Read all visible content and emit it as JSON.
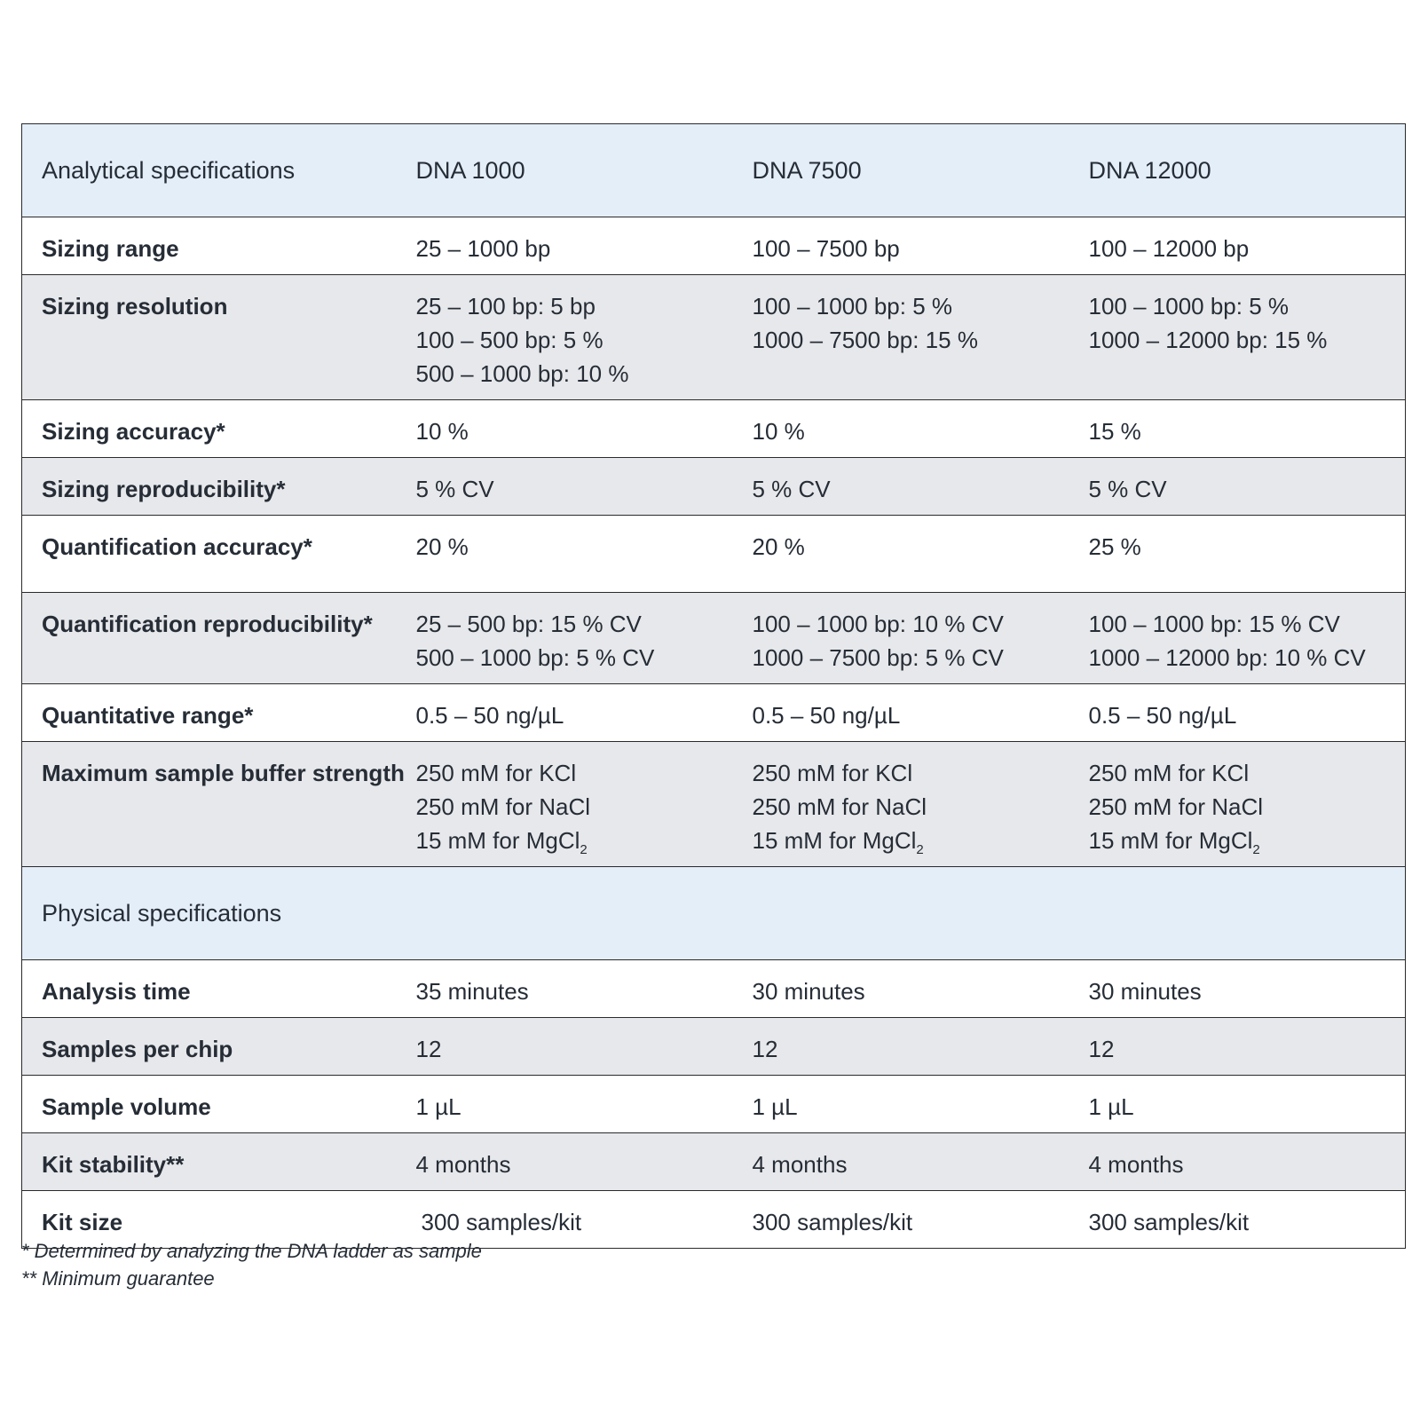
{
  "header": {
    "section_label": "Analytical specifications",
    "columns": [
      "DNA 1000",
      "DNA 7500",
      "DNA 12000"
    ]
  },
  "analytical_rows": [
    {
      "label": "Sizing range",
      "values": [
        "25 – 1000 bp",
        "100 – 7500 bp",
        "100 – 12000 bp"
      ]
    },
    {
      "label": "Sizing resolution",
      "values": [
        [
          "25 – 100 bp: 5 bp",
          "100 – 500 bp: 5 %",
          "500 – 1000 bp: 10 %"
        ],
        [
          "100 – 1000 bp: 5 %",
          "1000 – 7500 bp: 15 %"
        ],
        [
          "100 – 1000 bp: 5 %",
          "1000 – 12000 bp: 15 %"
        ]
      ]
    },
    {
      "label": "Sizing accuracy*",
      "values": [
        "10 %",
        "10 %",
        "15 %"
      ]
    },
    {
      "label": "Sizing reproducibility*",
      "values": [
        "5 % CV",
        "5 % CV",
        "5 % CV"
      ]
    },
    {
      "label": "Quantification accuracy*",
      "values": [
        "20 %",
        "20 %",
        "25 %"
      ]
    },
    {
      "label": "Quantification reproducibility*",
      "values": [
        [
          "25 – 500 bp: 15 % CV",
          "500 – 1000 bp: 5 % CV"
        ],
        [
          "100 – 1000 bp: 10 % CV",
          "1000 – 7500 bp: 5 % CV"
        ],
        [
          "100 – 1000 bp: 15 % CV",
          "1000 – 12000 bp: 10 % CV"
        ]
      ]
    },
    {
      "label": "Quantitative range*",
      "values": [
        "0.5 – 50 ng/µL",
        "0.5 – 50 ng/µL",
        "0.5 – 50 ng/µL"
      ]
    },
    {
      "label": "Maximum sample buffer strength",
      "values": [
        [
          "250 mM for KCl",
          "250 mM for NaCl",
          "15 mM for MgCl",
          "2"
        ],
        [
          "250 mM for KCl",
          "250 mM for NaCl",
          "15 mM for MgCl",
          "2"
        ],
        [
          "250 mM for KCl",
          "250 mM for NaCl",
          "15 mM for MgCl",
          "2"
        ]
      ]
    }
  ],
  "physical_section_label": "Physical specifications",
  "physical_rows": [
    {
      "label": "Analysis time",
      "values": [
        "35 minutes",
        "30 minutes",
        "30 minutes"
      ]
    },
    {
      "label": "Samples per chip",
      "values": [
        "12",
        "12",
        "12"
      ]
    },
    {
      "label": "Sample volume",
      "values": [
        "1 µL",
        "1 µL",
        "1 µL"
      ]
    },
    {
      "label": "Kit stability**",
      "values": [
        "4 months",
        "4 months",
        "4 months"
      ]
    },
    {
      "label": "Kit size",
      "values": [
        "300 samples/kit",
        "300 samples/kit",
        "300 samples/kit"
      ]
    }
  ],
  "footnotes": [
    "* Determined by analyzing the DNA ladder as sample",
    "** Minimum guarantee"
  ]
}
